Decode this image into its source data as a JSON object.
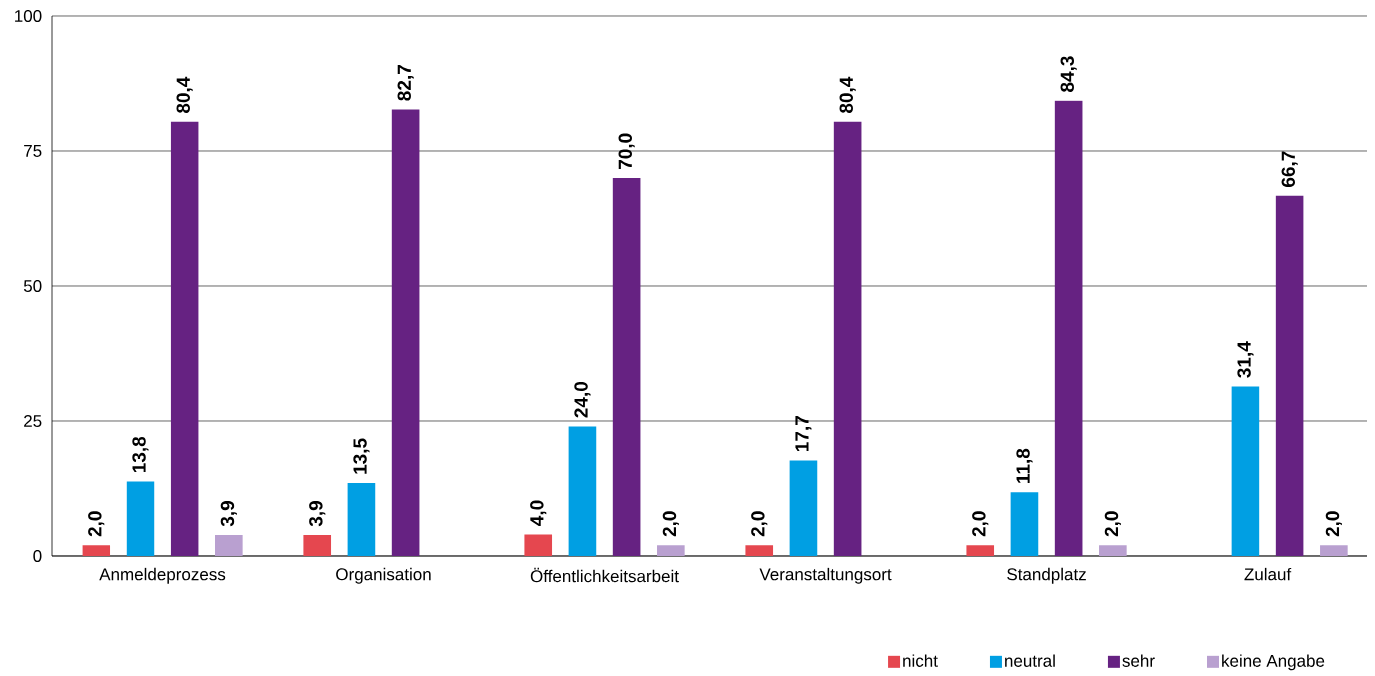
{
  "chart_data": {
    "type": "bar",
    "categories": [
      "Anmeldeprozess",
      "Organisation",
      "Öffentlichkeitsarbeit",
      "Veranstaltungsort",
      "Standplatz",
      "Zulauf"
    ],
    "series": [
      {
        "name": "nicht",
        "color": "#e5474f",
        "values": [
          2.0,
          3.9,
          4.0,
          2.0,
          2.0,
          null
        ],
        "value_labels": [
          "2,0",
          "3,9",
          "4,0",
          "2,0",
          "2,0",
          null
        ]
      },
      {
        "name": "neutral",
        "color": "#009fe3",
        "values": [
          13.8,
          13.5,
          24.0,
          17.7,
          11.8,
          31.4
        ],
        "value_labels": [
          "13,8",
          "13,5",
          "24,0",
          "17,7",
          "11,8",
          "31,4"
        ]
      },
      {
        "name": "sehr",
        "color": "#662282",
        "values": [
          80.4,
          82.7,
          70.0,
          80.4,
          84.3,
          66.7
        ],
        "value_labels": [
          "80,4",
          "82,7",
          "70,0",
          "80,4",
          "84,3",
          "66,7"
        ]
      },
      {
        "name": "keine Angabe",
        "color": "#b9a0d0",
        "values": [
          3.9,
          null,
          2.0,
          null,
          2.0,
          2.0
        ],
        "value_labels": [
          "3,9",
          null,
          "2,0",
          null,
          "2,0",
          "2,0"
        ]
      }
    ],
    "ylim": [
      0,
      100
    ],
    "yticks": [
      0,
      25,
      50,
      75,
      100
    ],
    "grid": "y",
    "legend": "bottom right"
  }
}
